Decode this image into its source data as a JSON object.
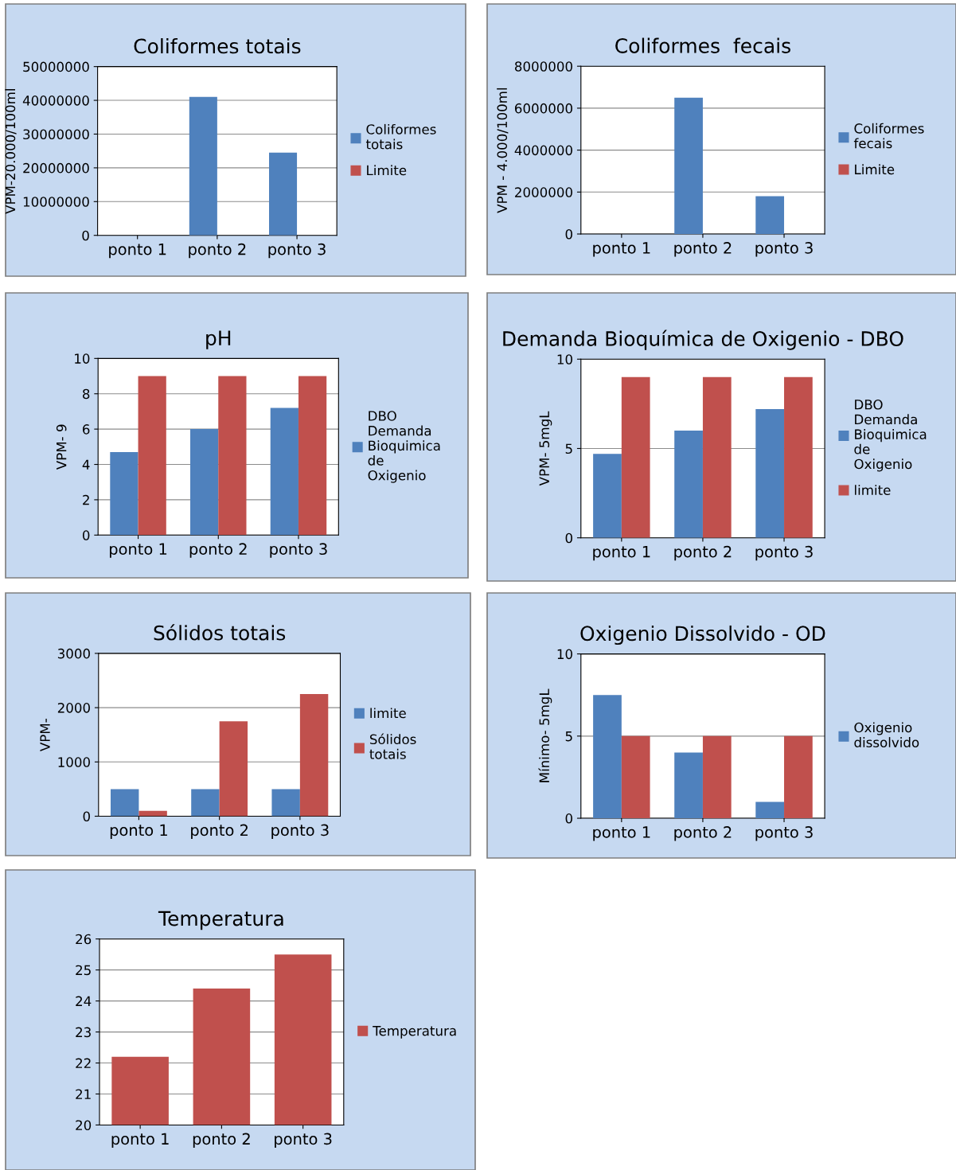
{
  "chart_data": [
    {
      "type": "bar",
      "title": "Coliformes totais",
      "ylabel": "VPM-20.000/100ml",
      "categories": [
        "ponto 1",
        "ponto 2",
        "ponto 3"
      ],
      "ylim": [
        0,
        50000000
      ],
      "yticks": [
        0,
        10000000,
        20000000,
        30000000,
        40000000,
        50000000
      ],
      "grid": "y",
      "legend": "right",
      "series": [
        {
          "name": "Coliformes totais",
          "color": "#4f81bd",
          "values": [
            0,
            41000000,
            24500000
          ]
        },
        {
          "name": "Limite",
          "color": "#c0504d",
          "values": [
            0,
            0,
            0
          ]
        }
      ]
    },
    {
      "type": "bar",
      "title": "Coliformes  fecais",
      "ylabel": "VPM - 4.000/100ml",
      "categories": [
        "ponto 1",
        "ponto 2",
        "ponto 3"
      ],
      "ylim": [
        0,
        8000000
      ],
      "yticks": [
        0,
        2000000,
        4000000,
        6000000,
        8000000
      ],
      "grid": "y",
      "legend": "right",
      "series": [
        {
          "name": "Coliformes fecais",
          "color": "#4f81bd",
          "values": [
            0,
            6500000,
            1800000
          ]
        },
        {
          "name": "Limite",
          "color": "#c0504d",
          "values": [
            0,
            0,
            0
          ]
        }
      ]
    },
    {
      "type": "bar",
      "title": "pH",
      "ylabel": "VPM- 9",
      "categories": [
        "ponto 1",
        "ponto 2",
        "ponto 3"
      ],
      "ylim": [
        0,
        10
      ],
      "yticks": [
        0,
        2,
        4,
        6,
        8,
        10
      ],
      "grid": "y",
      "legend": "right",
      "series": [
        {
          "name": "DBO Demanda Bioquimica de Oxigenio",
          "color": "#4f81bd",
          "values": [
            4.7,
            6.0,
            7.2
          ]
        },
        {
          "color": "#c0504d",
          "values": [
            9,
            9,
            9
          ]
        }
      ]
    },
    {
      "type": "bar",
      "title": "Demanda Bioquímica de Oxigenio - DBO",
      "ylabel": "VPM- 5mgL",
      "categories": [
        "ponto 1",
        "ponto 2",
        "ponto 3"
      ],
      "ylim": [
        0,
        10
      ],
      "yticks": [
        0,
        5,
        10
      ],
      "grid": "y",
      "legend": "right",
      "series": [
        {
          "name": "DBO Demanda Bioquimica de Oxigenio",
          "color": "#4f81bd",
          "values": [
            4.7,
            6.0,
            7.2
          ]
        },
        {
          "name": "limite",
          "color": "#c0504d",
          "values": [
            9,
            9,
            9
          ]
        }
      ]
    },
    {
      "type": "bar",
      "title": "Sólidos totais",
      "ylabel": "VPM-",
      "categories": [
        "ponto 1",
        "ponto 2",
        "ponto 3"
      ],
      "ylim": [
        0,
        3000
      ],
      "yticks": [
        0,
        1000,
        2000,
        3000
      ],
      "grid": "y",
      "legend": "right",
      "series": [
        {
          "name": "limite",
          "color": "#4f81bd",
          "values": [
            500,
            500,
            500
          ]
        },
        {
          "name": "Sólidos totais",
          "color": "#c0504d",
          "values": [
            100,
            1750,
            2250
          ]
        }
      ]
    },
    {
      "type": "bar",
      "title": "Oxigenio Dissolvido - OD",
      "ylabel": "Mínimo- 5mgL",
      "categories": [
        "ponto 1",
        "ponto 2",
        "ponto 3"
      ],
      "ylim": [
        0,
        10
      ],
      "yticks": [
        0,
        5,
        10
      ],
      "grid": "y",
      "legend": "right",
      "series": [
        {
          "name": "Oxigenio dissolvido",
          "color": "#4f81bd",
          "values": [
            7.5,
            4.0,
            1.0
          ]
        },
        {
          "color": "#c0504d",
          "values": [
            5,
            5,
            5
          ]
        }
      ]
    },
    {
      "type": "bar",
      "title": "Temperatura",
      "categories": [
        "ponto 1",
        "ponto 2",
        "ponto 3"
      ],
      "ylim": [
        20,
        26
      ],
      "yticks": [
        20,
        21,
        22,
        23,
        24,
        25,
        26
      ],
      "grid": "y",
      "legend": "right",
      "series": [
        {
          "name": "Temperatura",
          "color": "#c0504d",
          "values": [
            22.2,
            24.4,
            25.5
          ]
        }
      ]
    }
  ]
}
